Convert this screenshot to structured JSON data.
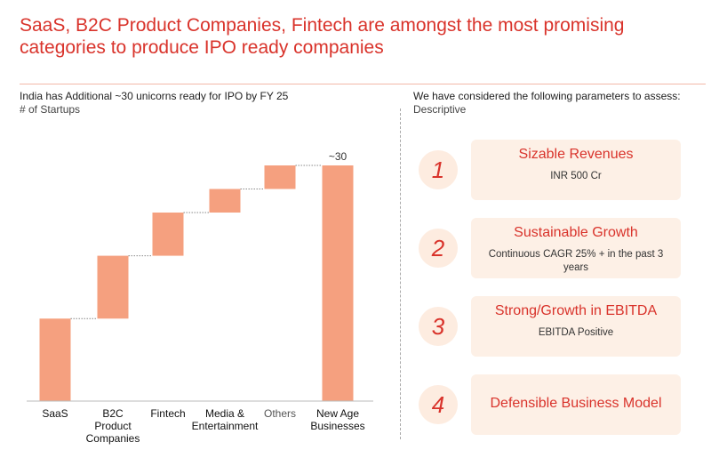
{
  "header": {
    "title": "SaaS, B2C Product Companies, Fintech are amongst the most promising categories to produce IPO ready companies"
  },
  "chart_data": {
    "type": "waterfall",
    "title": "India has Additional ~30 unicorns ready for IPO by FY 25",
    "subtitle": "# of Startups",
    "categories": [
      "SaaS",
      "B2C Product Companies",
      "Fintech",
      "Media & Entertainment",
      "Others",
      "New Age Businesses"
    ],
    "values": [
      10.5,
      8,
      5.5,
      3,
      3,
      30
    ],
    "value_labels": [
      null,
      null,
      null,
      null,
      null,
      "~30"
    ],
    "color": "#f5a07f"
  },
  "parameters": {
    "title": "We have considered the following parameters to assess:",
    "subtitle": "Descriptive",
    "items": [
      {
        "number": "1",
        "title": "Sizable Revenues",
        "description": "INR 500 Cr"
      },
      {
        "number": "2",
        "title": "Sustainable Growth",
        "description": "Continuous CAGR 25% + in the past 3 years"
      },
      {
        "number": "3",
        "title": "Strong/Growth in EBITDA",
        "description": "EBITDA Positive"
      },
      {
        "number": "4",
        "title": "Defensible Business Model"
      }
    ]
  }
}
